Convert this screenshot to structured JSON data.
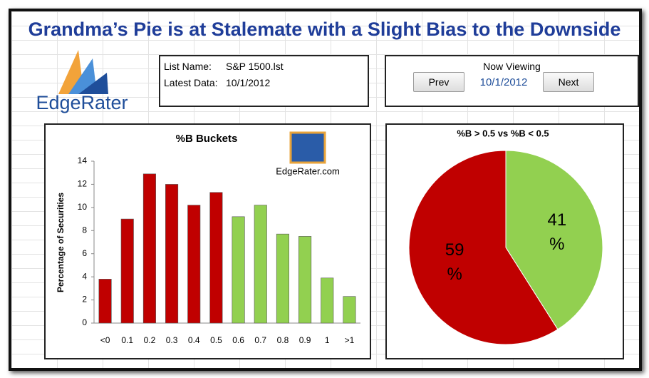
{
  "header": {
    "title": "Grandma’s Pie is at Stalemate with a Slight Bias to the Downside",
    "logo": "EdgeRater"
  },
  "info": {
    "list_label": "List Name:",
    "list_value": "S&P 1500.lst",
    "data_label": "Latest Data:",
    "data_value": "10/1/2012"
  },
  "nav": {
    "heading": "Now Viewing",
    "prev": "Prev",
    "date": "10/1/2012",
    "next": "Next"
  },
  "chart_data": [
    {
      "type": "bar",
      "title": "%B Buckets",
      "logo": "EdgeRater.com",
      "ylabel": "Percentage of Securities",
      "categories": [
        "<0",
        "0.1",
        "0.2",
        "0.3",
        "0.4",
        "0.5",
        "0.6",
        "0.7",
        "0.8",
        "0.9",
        "1",
        ">1"
      ],
      "values": [
        3.8,
        9.0,
        12.9,
        12.0,
        10.2,
        11.3,
        9.2,
        10.2,
        7.7,
        7.5,
        3.9,
        2.3
      ],
      "colors": [
        "#c00000",
        "#c00000",
        "#c00000",
        "#c00000",
        "#c00000",
        "#c00000",
        "#92d050",
        "#92d050",
        "#92d050",
        "#92d050",
        "#92d050",
        "#92d050"
      ],
      "ylim": [
        0,
        14
      ],
      "yticks": [
        0,
        2,
        4,
        6,
        8,
        10,
        12,
        14
      ]
    },
    {
      "type": "pie",
      "title": "%B > 0.5 vs %B < 0.5",
      "values": [
        41,
        59
      ],
      "value_labels": [
        "41\n%",
        "59\n%"
      ],
      "colors": [
        "#92d050",
        "#c00000"
      ]
    }
  ]
}
